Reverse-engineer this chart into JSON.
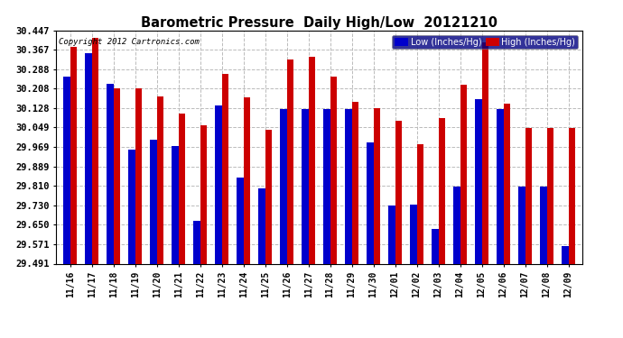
{
  "title": "Barometric Pressure  Daily High/Low  20121210",
  "copyright": "Copyright 2012 Cartronics.com",
  "legend_low": "Low (Inches/Hg)",
  "legend_high": "High (Inches/Hg)",
  "ylabel_values": [
    29.491,
    29.571,
    29.65,
    29.73,
    29.81,
    29.889,
    29.969,
    30.049,
    30.128,
    30.208,
    30.288,
    30.367,
    30.447
  ],
  "dates": [
    "11/16",
    "11/17",
    "11/18",
    "11/19",
    "11/20",
    "11/21",
    "11/22",
    "11/23",
    "11/24",
    "11/25",
    "11/26",
    "11/27",
    "11/28",
    "11/29",
    "11/30",
    "12/01",
    "12/02",
    "12/03",
    "12/04",
    "12/05",
    "12/06",
    "12/07",
    "12/08",
    "12/09"
  ],
  "low_values": [
    30.258,
    30.353,
    30.228,
    29.958,
    29.998,
    29.975,
    29.668,
    30.138,
    29.843,
    29.798,
    30.125,
    30.125,
    30.125,
    30.125,
    29.988,
    29.728,
    29.733,
    29.633,
    29.808,
    30.165,
    30.125,
    29.808,
    29.808,
    29.562
  ],
  "high_values": [
    30.378,
    30.418,
    30.208,
    30.208,
    30.175,
    30.108,
    30.058,
    30.268,
    30.173,
    30.038,
    30.328,
    30.338,
    30.258,
    30.153,
    30.128,
    30.078,
    29.982,
    30.087,
    30.225,
    30.398,
    30.145,
    30.048,
    30.047,
    30.047
  ],
  "low_color": "#0000cc",
  "high_color": "#cc0000",
  "bg_color": "#ffffff",
  "grid_color": "#bbbbbb",
  "ymin": 29.491,
  "ymax": 30.447
}
